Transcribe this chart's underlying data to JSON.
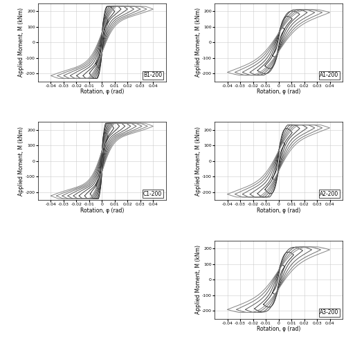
{
  "panels": [
    {
      "label": "B1-200",
      "col": 0,
      "row": 0,
      "max_rot": 0.04,
      "max_mom": 220,
      "n_cycles": 8,
      "stiffness": 4.0
    },
    {
      "label": "A1-200",
      "col": 1,
      "row": 0,
      "max_rot": 0.04,
      "max_mom": 200,
      "n_cycles": 7,
      "stiffness": 2.5
    },
    {
      "label": "C1-200",
      "col": 0,
      "row": 1,
      "max_rot": 0.04,
      "max_mom": 230,
      "n_cycles": 9,
      "stiffness": 4.5
    },
    {
      "label": "A2-200",
      "col": 1,
      "row": 1,
      "max_rot": 0.04,
      "max_mom": 220,
      "n_cycles": 7,
      "stiffness": 3.0
    },
    {
      "label": "A3-200",
      "col": 1,
      "row": 2,
      "max_rot": 0.04,
      "max_mom": 200,
      "n_cycles": 6,
      "stiffness": 2.5
    }
  ],
  "xlim": [
    -0.05,
    0.05
  ],
  "ylim": [
    -250,
    250
  ],
  "xlabel": "Rotation, φ (rad)",
  "ylabel": "Applied Moment, M (kNm)",
  "xticks": [
    -0.04,
    -0.03,
    -0.02,
    -0.01,
    0,
    0.01,
    0.02,
    0.03,
    0.04
  ],
  "yticks": [
    -200,
    -100,
    0,
    100,
    200
  ],
  "grid_color": "#cccccc",
  "bg_color": "#ffffff"
}
